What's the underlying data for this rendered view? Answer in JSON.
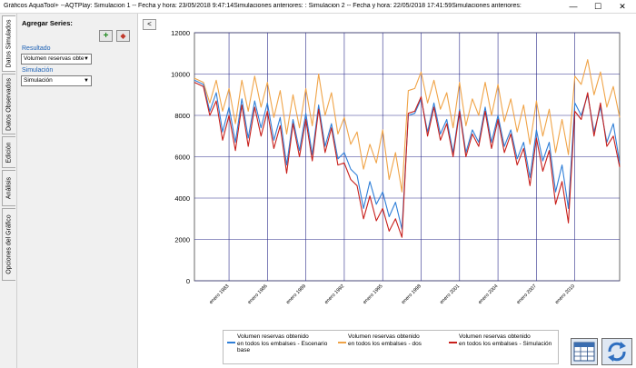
{
  "window": {
    "title": "Gráficos AquaTool+ --AQTPlay: Simulacion 1 -- Fecha y hora: 23/05/2018 9:47:14Simulaciones anteriores:    : Simulacion 2 -- Fecha y hora: 22/05/2018 17:41:59Simulaciones anteriores:",
    "minimize": "—",
    "maximize": "☐",
    "close": "✕"
  },
  "tabs": [
    {
      "label": "Datos Simulados"
    },
    {
      "label": "Datos Observados"
    },
    {
      "label": "Edición"
    },
    {
      "label": "Análisis"
    },
    {
      "label": "Opciones del Gráfico"
    }
  ],
  "panel": {
    "header": "Agregar Series:",
    "add_icon": "plus-icon",
    "remove_icon": "eraser-icon",
    "resultado_label": "Resultado",
    "resultado_value": "Volumen reservas obte",
    "simulacion_label": "Simulación",
    "simulacion_value": "Simulación",
    "collapse_label": "<"
  },
  "colors": {
    "series1": "#2f7fd8",
    "series2": "#f0a448",
    "series3": "#c8201c",
    "grid": "#2b2b8a"
  },
  "chart_data": {
    "type": "line",
    "title": "",
    "xlabel": "",
    "ylabel": "",
    "ylim": [
      0,
      12000
    ],
    "yticks": [
      0,
      2000,
      4000,
      6000,
      8000,
      10000,
      12000
    ],
    "xlim": [
      1980.3,
      2013.5
    ],
    "xtick_values": [
      1983,
      1986,
      1989,
      1992,
      1995,
      1998,
      2001,
      2004,
      2007,
      2010
    ],
    "xtick_labels": [
      "enero 1983",
      "enero 1986",
      "enero 1989",
      "enero 1992",
      "enero 1995",
      "enero 1998",
      "enero 2001",
      "enero 2004",
      "enero 2007",
      "enero 2010"
    ],
    "grid": true,
    "legend_position": "bottom",
    "x": [
      1980.3,
      1981,
      1981.5,
      1982,
      1982.5,
      1983,
      1983.5,
      1984,
      1984.5,
      1985,
      1985.5,
      1986,
      1986.5,
      1987,
      1987.5,
      1988,
      1988.5,
      1989,
      1989.5,
      1990,
      1990.5,
      1991,
      1991.5,
      1992,
      1992.5,
      1993,
      1993.5,
      1994,
      1994.5,
      1995,
      1995.5,
      1996,
      1996.5,
      1997,
      1997.5,
      1998,
      1998.5,
      1999,
      1999.5,
      2000,
      2000.5,
      2001,
      2001.5,
      2002,
      2002.5,
      2003,
      2003.5,
      2004,
      2004.5,
      2005,
      2005.5,
      2006,
      2006.5,
      2007,
      2007.5,
      2008,
      2008.5,
      2009,
      2009.5,
      2010,
      2010.5,
      2011,
      2011.5,
      2012,
      2012.5,
      2013,
      2013.5
    ],
    "series": [
      {
        "name": "Volumen reservas obtenido en todos los embalses - Escenario base",
        "values": [
          9700,
          9500,
          8200,
          9100,
          7200,
          8400,
          6700,
          8800,
          6900,
          8700,
          7400,
          8600,
          6800,
          7900,
          5600,
          7800,
          6300,
          8100,
          6100,
          8500,
          6500,
          7600,
          5900,
          6200,
          5400,
          5100,
          3500,
          4800,
          3700,
          4300,
          3100,
          3800,
          2500,
          8000,
          8100,
          8800,
          7200,
          8600,
          7100,
          7800,
          6200,
          8300,
          6200,
          7300,
          6700,
          8400,
          6700,
          8000,
          6500,
          7300,
          5900,
          6700,
          5000,
          7300,
          5800,
          6700,
          4300,
          5600,
          3500,
          8600,
          8000,
          9000,
          7200,
          8400,
          6700,
          7600,
          5700
        ]
      },
      {
        "name": "Volumen reservas obtenido en todos los embalses - dos",
        "values": [
          9800,
          9600,
          8600,
          9700,
          8200,
          9300,
          7600,
          9700,
          8200,
          9900,
          8400,
          9600,
          7900,
          9200,
          7100,
          9000,
          7400,
          9300,
          7500,
          10000,
          8000,
          9100,
          7100,
          7900,
          6600,
          7200,
          5400,
          6600,
          5700,
          7300,
          4900,
          6200,
          4300,
          9200,
          9300,
          10100,
          8600,
          9700,
          8300,
          9100,
          7400,
          9600,
          7500,
          8800,
          8000,
          9600,
          8000,
          9500,
          7700,
          8800,
          7200,
          8500,
          6600,
          8700,
          7000,
          8300,
          6200,
          7800,
          6100,
          9900,
          9500,
          10700,
          9000,
          10100,
          8400,
          9400,
          7900
        ]
      },
      {
        "name": "Volumen reservas obtenido en todos los embalses - Simulación",
        "values": [
          9600,
          9400,
          8000,
          8700,
          6800,
          8000,
          6300,
          8500,
          6500,
          8400,
          7000,
          8200,
          6400,
          7500,
          5200,
          7600,
          6000,
          7800,
          5800,
          8300,
          6200,
          7400,
          5600,
          5700,
          4900,
          4600,
          3000,
          4100,
          2900,
          3500,
          2400,
          3000,
          2100,
          8100,
          8200,
          8900,
          7000,
          8400,
          6800,
          7600,
          6000,
          8200,
          6000,
          7100,
          6500,
          8200,
          6400,
          7800,
          6200,
          7100,
          5600,
          6400,
          4600,
          6900,
          5300,
          6300,
          3700,
          4800,
          2800,
          8200,
          7800,
          9100,
          7000,
          8600,
          6500,
          7000,
          5500
        ]
      }
    ]
  },
  "legend": [
    {
      "line1": "Volumen reservas obtenido",
      "line2": "en todos los embalses - Escenario",
      "line3": "base"
    },
    {
      "line1": "Volumen reservas obtenido",
      "line2": "en todos los embalses - dos",
      "line3": ""
    },
    {
      "line1": "Volumen reservas obtenido",
      "line2": "en todos los embalses - Simulación",
      "line3": ""
    }
  ],
  "tools": {
    "table_icon": "table-icon",
    "refresh_icon": "refresh-icon"
  }
}
